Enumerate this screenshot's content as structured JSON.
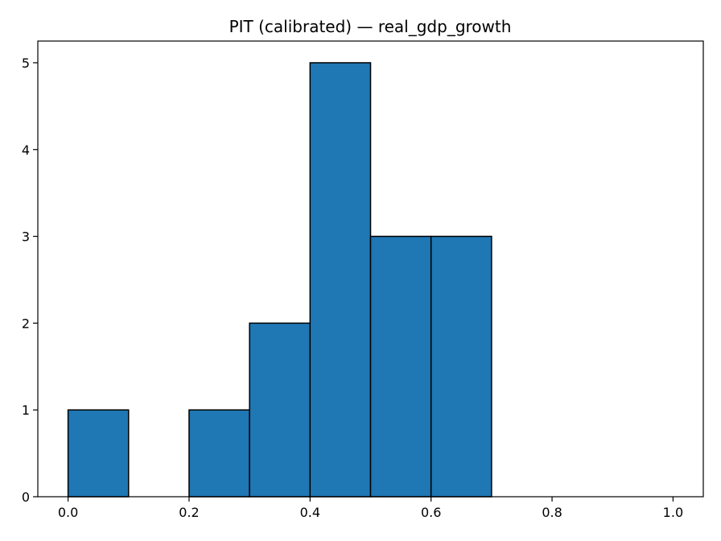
{
  "chart_data": {
    "type": "bar",
    "title": "PIT (calibrated) — real_gdp_growth",
    "xlabel": "",
    "ylabel": "",
    "bin_edges": [
      0.0,
      0.1,
      0.2,
      0.3,
      0.4,
      0.5,
      0.6,
      0.7,
      0.8,
      0.9,
      1.0
    ],
    "values": [
      1,
      0,
      1,
      2,
      5,
      3,
      3,
      0,
      0,
      0
    ],
    "xlim": [
      -0.05,
      1.05
    ],
    "ylim": [
      0,
      5.25
    ],
    "xticks": [
      "0.0",
      "0.2",
      "0.4",
      "0.6",
      "0.8",
      "1.0"
    ],
    "yticks": [
      "0",
      "1",
      "2",
      "3",
      "4",
      "5"
    ],
    "grid": false,
    "bar_color": "#1f77b4",
    "edge_color": "#000000"
  }
}
